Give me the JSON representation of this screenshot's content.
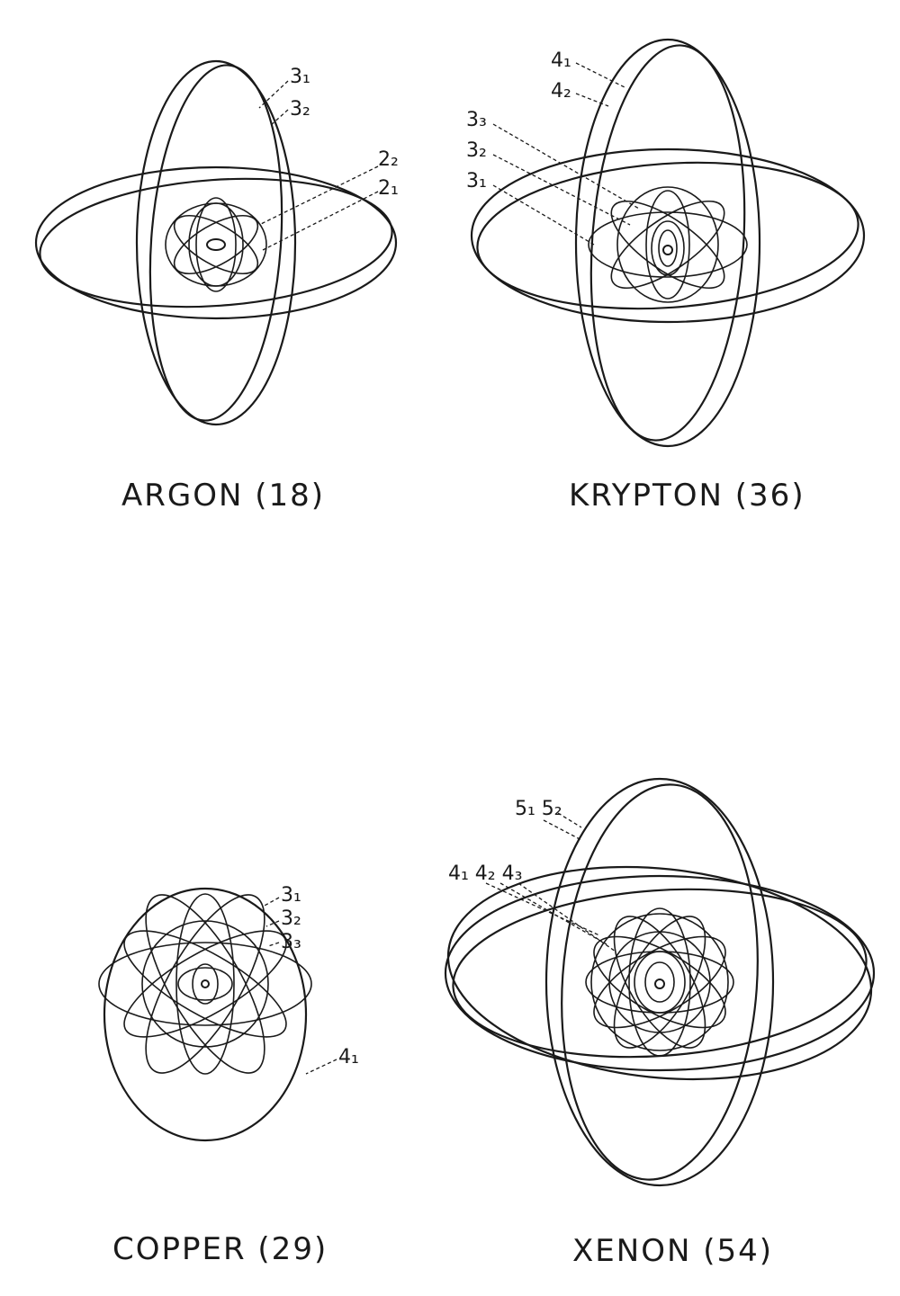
{
  "panels": [
    {
      "id": "argon",
      "caption": "ARGON (18)",
      "labels": [
        "3₁",
        "3₂",
        "2₂",
        "2₁"
      ]
    },
    {
      "id": "krypton",
      "caption": "KRYPTON (36)",
      "labels": [
        "4₁",
        "4₂",
        "3₃",
        "3₂",
        "3₁"
      ]
    },
    {
      "id": "copper",
      "caption": "COPPER (29)",
      "labels": [
        "3₁",
        "3₂",
        "3₃",
        "4₁"
      ]
    },
    {
      "id": "xenon",
      "caption": "XENON (54)",
      "labels": [
        "5₁ 5₂",
        "4₁ 4₂ 4₃"
      ]
    }
  ],
  "colors": {
    "ink": "#1a1a1a",
    "paper": "#ffffff"
  }
}
